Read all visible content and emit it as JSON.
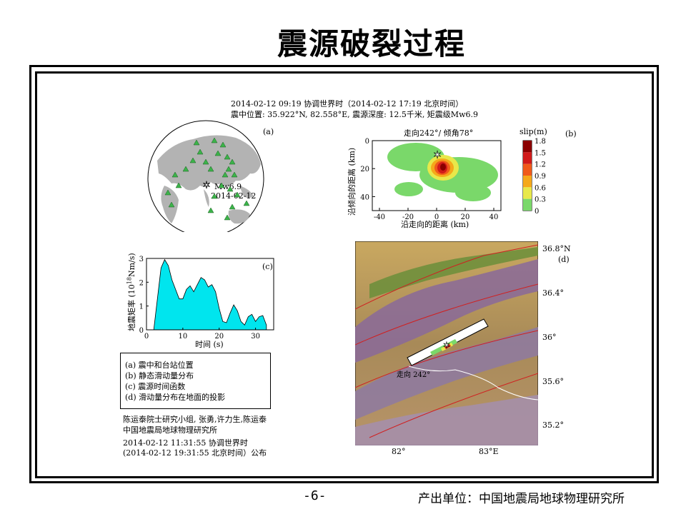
{
  "slide": {
    "title": "震源破裂过程",
    "page_number": "-6-",
    "producer": "产出单位：中国地震局地球物理研究所"
  },
  "header": {
    "line1": "2014-02-12 09:19 协调世界时（2014-02-12 17:19 北京时间）",
    "line2": "震中位置: 35.922°N, 82.558°E, 震源深度: 12.5千米, 矩震级Mw6.9"
  },
  "panel_a": {
    "label": "(a)",
    "magnitude": "Mw6.9",
    "date": "2014-02-12",
    "colors": {
      "land": "#b3b3b3",
      "station": "#3cb34a"
    }
  },
  "panel_b": {
    "label": "(b)",
    "title": "走向242°/ 倾角78°",
    "xlabel": "沿走向的距离 (km)",
    "ylabel": "沿倾向的距离 (km)",
    "x_ticks": [
      "-40",
      "-20",
      "0",
      "20",
      "40"
    ],
    "y_ticks": [
      "0",
      "20",
      "40"
    ],
    "colorbar_title": "slip(m)",
    "colorbar_ticks": [
      "1.8",
      "1.5",
      "1.2",
      "0.9",
      "0.6",
      "0.3",
      "0"
    ],
    "colorbar_colors": [
      "#8b0000",
      "#d11a1a",
      "#f05a1a",
      "#f5a81a",
      "#e8e84a",
      "#7ad86a",
      "#ffffff"
    ]
  },
  "panel_c": {
    "label": "(c)",
    "ylabel_main": "地震矩率 (10",
    "ylabel_exp": "18",
    "ylabel_unit": "Nm/s)",
    "xlabel": "时间 (s)",
    "x_ticks": [
      "0",
      "10",
      "20",
      "30"
    ],
    "y_ticks": [
      "0",
      "1",
      "2",
      "3"
    ],
    "fill_color": "#00e5ee"
  },
  "panel_d": {
    "label": "(d)",
    "lat_ticks": [
      "36.8°N",
      "36.4°",
      "36°",
      "35.6°",
      "35.2°"
    ],
    "lon_ticks": [
      "82°",
      "83°E"
    ],
    "strike_label": "走向 242°"
  },
  "legend": {
    "items": [
      "(a) 震中和台站位置",
      "(b) 静态滑动量分布",
      "(c) 震源时间函数",
      "(d) 滑动量分布在地面的投影"
    ]
  },
  "credits": {
    "line1": "陈运泰院士研究小组, 张勇,许力生,陈运泰",
    "line2": "中国地震局地球物理研究所",
    "line3": "2014-02-12 11:31:55 协调世界时",
    "line4": "(2014-02-12 19:31:55 北京时间）公布"
  },
  "chart_data": [
    {
      "type": "area",
      "panel": "(c)",
      "xlabel": "时间 (s)",
      "ylabel": "地震矩率 (10^18 Nm/s)",
      "xlim": [
        0,
        35
      ],
      "ylim": [
        0,
        3
      ],
      "x": [
        2,
        3,
        4,
        5,
        6,
        7,
        8,
        9,
        10,
        11,
        12,
        13,
        14,
        15,
        16,
        17,
        18,
        19,
        20,
        21,
        22,
        23,
        24,
        25,
        26,
        27,
        28,
        29,
        30,
        31,
        32,
        33
      ],
      "y": [
        0.0,
        1.3,
        2.6,
        2.95,
        2.7,
        2.1,
        1.7,
        1.3,
        1.3,
        1.7,
        1.85,
        1.6,
        1.9,
        2.2,
        2.1,
        1.8,
        1.9,
        1.6,
        0.9,
        0.35,
        0.3,
        0.7,
        1.05,
        0.8,
        0.35,
        0.2,
        0.55,
        0.65,
        0.35,
        0.55,
        0.6,
        0.2
      ]
    },
    {
      "type": "heatmap",
      "panel": "(b)",
      "xlabel": "沿走向的距离 (km)",
      "ylabel": "沿倾向的距离 (km)",
      "xlim": [
        -45,
        45
      ],
      "ylim": [
        0,
        50
      ],
      "peak_slip_m": 1.8,
      "peak_location_km": [
        5,
        20
      ]
    }
  ]
}
